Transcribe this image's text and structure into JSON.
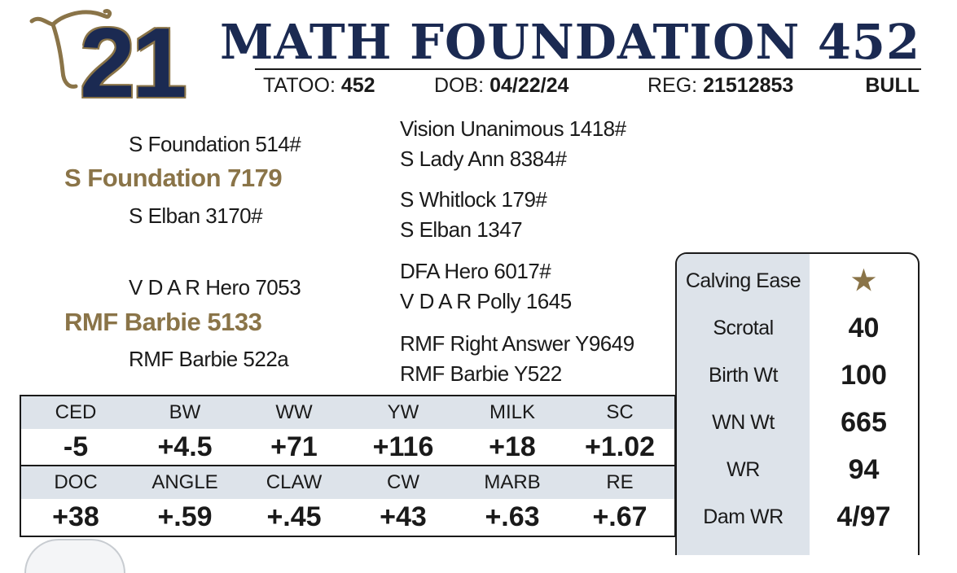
{
  "header": {
    "lot_number": "21",
    "animal_name": "MATH FOUNDATION 452",
    "tattoo_label": "TATOO:",
    "tattoo": "452",
    "dob_label": "DOB:",
    "dob": "04/22/24",
    "reg_label": "REG:",
    "reg": "21512853",
    "sex": "BULL",
    "logo_icon": "cow-head-icon"
  },
  "pedigree": {
    "sire": {
      "name": "S Foundation 7179",
      "sire": "S Foundation 514#",
      "dam": "S Elban 3170#",
      "sire_sire": "Vision Unanimous 1418#",
      "sire_dam": "S Lady Ann 8384#",
      "dam_sire": "S Whitlock 179#",
      "dam_dam": "S Elban 1347"
    },
    "dam": {
      "name": "RMF Barbie 5133",
      "sire": "V D A R Hero 7053",
      "dam": "RMF Barbie 522a",
      "sire_sire": "DFA Hero 6017#",
      "sire_dam": "V D A R Polly 1645",
      "dam_sire": "RMF Right Answer Y9649",
      "dam_dam": "RMF Barbie Y522"
    }
  },
  "stats": [
    {
      "label": "Calving Ease",
      "value": "★"
    },
    {
      "label": "Scrotal",
      "value": "40"
    },
    {
      "label": "Birth Wt",
      "value": "100"
    },
    {
      "label": "WN Wt",
      "value": "665"
    },
    {
      "label": "WR",
      "value": "94"
    },
    {
      "label": "Dam WR",
      "value": "4/97"
    }
  ],
  "epd": {
    "row1": [
      {
        "label": "CED",
        "value": "-5"
      },
      {
        "label": "BW",
        "value": "+4.5"
      },
      {
        "label": "WW",
        "value": "+71"
      },
      {
        "label": "YW",
        "value": "+116"
      },
      {
        "label": "MILK",
        "value": "+18"
      },
      {
        "label": "SC",
        "value": "+1.02"
      }
    ],
    "row2": [
      {
        "label": "DOC",
        "value": "+38"
      },
      {
        "label": "ANGLE",
        "value": "+.59"
      },
      {
        "label": "CLAW",
        "value": "+.45"
      },
      {
        "label": "CW",
        "value": "+43"
      },
      {
        "label": "MARB",
        "value": "+.63"
      },
      {
        "label": "RE",
        "value": "+.67"
      }
    ]
  },
  "colors": {
    "navy": "#1b2a52",
    "gold": "#8a7448",
    "panel_gray": "#dde3ea"
  }
}
